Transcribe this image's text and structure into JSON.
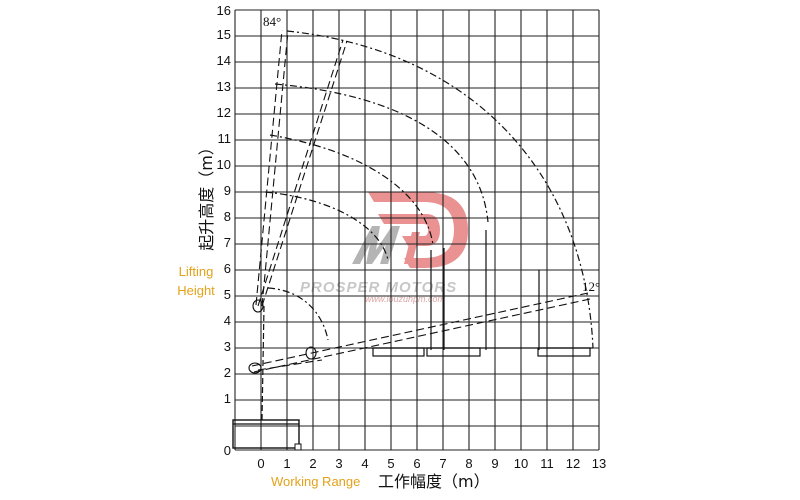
{
  "diagram": {
    "x_axis": {
      "ticks": [
        "0",
        "1",
        "2",
        "3",
        "4",
        "5",
        "6",
        "7",
        "8",
        "9",
        "10",
        "11",
        "12",
        "13"
      ],
      "label_cn": "工作幅度（m）",
      "label_en": "Working Range"
    },
    "y_axis": {
      "ticks": [
        "0",
        "1",
        "2",
        "3",
        "4",
        "5",
        "6",
        "7",
        "8",
        "9",
        "10",
        "11",
        "12",
        "13",
        "14",
        "15",
        "16"
      ],
      "label_cn": "起升高度（m）",
      "label_en_line1": "Lifting",
      "label_en_line2": "Height"
    },
    "angles": {
      "max": "84°",
      "min": "12°"
    },
    "watermark": {
      "brand": "PROSPER MOTORS",
      "url": "www.louzuhpm.com",
      "accent": "#d93a3a"
    },
    "colors": {
      "english_label": "#e3a21a",
      "grid": "#222222"
    },
    "icons": [
      "brand-logo-icon"
    ]
  }
}
